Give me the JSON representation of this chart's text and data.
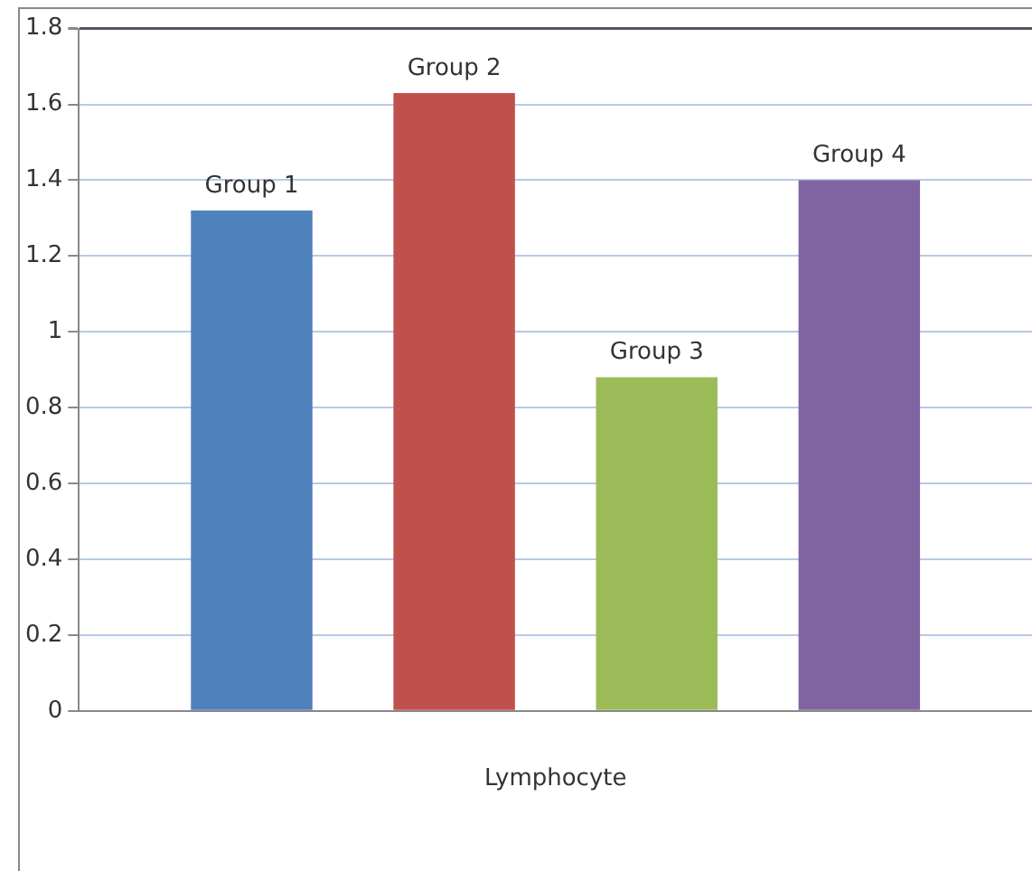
{
  "chart_data": {
    "type": "bar",
    "categories": [
      "Lymphocyte"
    ],
    "series": [
      {
        "name": "Group 1",
        "color": "#4f81bd",
        "values": [
          1.32
        ]
      },
      {
        "name": "Group 2",
        "color": "#c0504d",
        "values": [
          1.63
        ]
      },
      {
        "name": "Group 3",
        "color": "#9bbb59",
        "values": [
          0.88
        ]
      },
      {
        "name": "Group 4",
        "color": "#8064a2",
        "values": [
          1.4
        ]
      }
    ],
    "ylim": [
      0,
      1.8
    ],
    "yticks": [
      0,
      0.2,
      0.4,
      0.6,
      0.8,
      1,
      1.2,
      1.4,
      1.6,
      1.8
    ],
    "grid": "y",
    "legend": false
  }
}
